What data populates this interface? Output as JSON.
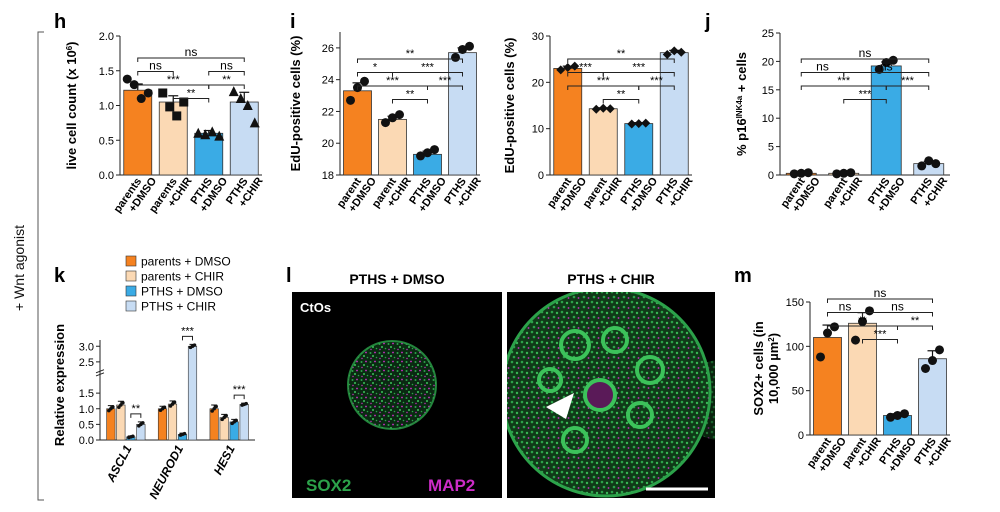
{
  "side_label": "+ Wnt agonist",
  "colors": {
    "orange": "#f58220",
    "peach": "#fbd9b4",
    "blue": "#3aabe5",
    "lightblue": "#c7dcf3",
    "green": "#2ca24a",
    "magenta": "#cc2cc7"
  },
  "panels": {
    "h": "h",
    "i": "i",
    "j": "j",
    "k": "k",
    "l": "l",
    "m": "m"
  },
  "chart_data": [
    {
      "panel": "h",
      "type": "bar",
      "ylabel_parts": [
        "live cell count (x 10",
        "6",
        ")"
      ],
      "ylim": [
        0,
        2.0
      ],
      "yticks": [
        0,
        0.5,
        1.0,
        1.5,
        2.0
      ],
      "ytick_labels": [
        "0.0",
        "0.5",
        "1.0",
        "1.5",
        "2.0"
      ],
      "categories": [
        "parents\n+DMSO",
        "parents\n+CHIR",
        "PTHS\n+DMSO",
        "PTHS\n+CHIR"
      ],
      "values": [
        1.22,
        1.05,
        0.6,
        1.05
      ],
      "errors": [
        0.09,
        0.09,
        0.04,
        0.14
      ],
      "colors": [
        "#f58220",
        "#fbd9b4",
        "#3aabe5",
        "#c7dcf3"
      ],
      "points": [
        [
          1.38,
          1.3,
          1.1,
          1.18
        ],
        [
          1.18,
          0.98,
          0.85,
          1.05
        ],
        [
          0.6,
          0.58,
          0.62,
          0.56
        ],
        [
          1.2,
          1.1,
          1.0,
          0.75
        ]
      ],
      "point_shapes": [
        "circle",
        "square",
        "triangle",
        "triangle"
      ],
      "brackets": [
        {
          "from": 0,
          "to": 3,
          "label": "ns",
          "level": 3
        },
        {
          "from": 0,
          "to": 1,
          "label": "ns",
          "level": 2
        },
        {
          "from": 2,
          "to": 3,
          "label": "ns",
          "level": 2
        },
        {
          "from": 0,
          "to": 2,
          "label": "***",
          "level": 1
        },
        {
          "from": 2,
          "to": 3,
          "label": "**",
          "level": 1
        },
        {
          "from": 1,
          "to": 2,
          "label": "**",
          "level": 0
        }
      ]
    },
    {
      "panel": "i1",
      "type": "bar",
      "ylabel_parts": [
        "EdU-positive cells (%)"
      ],
      "ylim": [
        18,
        27
      ],
      "yticks": [
        18,
        20,
        22,
        24,
        26
      ],
      "ytick_labels": [
        "18",
        "20",
        "22",
        "24",
        "26"
      ],
      "categories": [
        "parent\n+DMSO",
        "parent\n+CHIR",
        "PTHS\n+DMSO",
        "PTHS\n+CHIR"
      ],
      "values": [
        23.3,
        21.5,
        19.3,
        25.7
      ],
      "errors": [
        0.5,
        0.2,
        0.2,
        0.3
      ],
      "colors": [
        "#f58220",
        "#fbd9b4",
        "#3aabe5",
        "#c7dcf3"
      ],
      "points": [
        [
          22.7,
          23.5,
          23.9
        ],
        [
          21.3,
          21.6,
          21.8
        ],
        [
          19.2,
          19.4,
          19.6
        ],
        [
          25.4,
          25.9,
          26.1
        ]
      ],
      "point_shapes": [
        "circle",
        "circle",
        "circle",
        "circle"
      ],
      "brackets": [
        {
          "from": 0,
          "to": 3,
          "label": "**",
          "level": 3
        },
        {
          "from": 0,
          "to": 1,
          "label": "*",
          "level": 2
        },
        {
          "from": 1,
          "to": 3,
          "label": "***",
          "level": 2
        },
        {
          "from": 0,
          "to": 2,
          "label": "***",
          "level": 1
        },
        {
          "from": 2,
          "to": 3,
          "label": "***",
          "level": 1
        },
        {
          "from": 1,
          "to": 2,
          "label": "**",
          "level": 0
        }
      ]
    },
    {
      "panel": "i2",
      "type": "bar",
      "ylabel_parts": [
        "EdU-positive cells (%)"
      ],
      "ylim": [
        0,
        30
      ],
      "yticks": [
        0,
        10,
        20,
        30
      ],
      "ytick_labels": [
        "0",
        "10",
        "20",
        "30"
      ],
      "categories": [
        "parent\n+DMSO",
        "parent\n+CHIR",
        "PTHS\n+DMSO",
        "PTHS\n+CHIR"
      ],
      "values": [
        23.0,
        14.3,
        11.1,
        26.4
      ],
      "errors": [
        0.5,
        0.2,
        0.2,
        0.5
      ],
      "colors": [
        "#f58220",
        "#fbd9b4",
        "#3aabe5",
        "#c7dcf3"
      ],
      "points": [
        [
          22.7,
          23.2,
          23.5
        ],
        [
          14.2,
          14.4,
          14.3
        ],
        [
          11.0,
          11.1,
          11.2
        ],
        [
          26.0,
          26.8,
          26.5
        ]
      ],
      "point_shapes": [
        "diamond",
        "diamond",
        "diamond",
        "diamond"
      ],
      "brackets": [
        {
          "from": 0,
          "to": 3,
          "label": "**",
          "level": 3
        },
        {
          "from": 0,
          "to": 1,
          "label": "***",
          "level": 2
        },
        {
          "from": 1,
          "to": 3,
          "label": "***",
          "level": 2
        },
        {
          "from": 0,
          "to": 2,
          "label": "***",
          "level": 1
        },
        {
          "from": 2,
          "to": 3,
          "label": "***",
          "level": 1
        },
        {
          "from": 1,
          "to": 2,
          "label": "**",
          "level": 0
        }
      ]
    },
    {
      "panel": "j",
      "type": "bar",
      "ylabel_parts": [
        "% p16",
        "INK4a",
        " + cells"
      ],
      "ylim": [
        0,
        25
      ],
      "yticks": [
        0,
        5,
        10,
        15,
        20,
        25
      ],
      "ytick_labels": [
        "0",
        "5",
        "10",
        "15",
        "20",
        "25"
      ],
      "categories": [
        "parent\n+DMSO",
        "parent\n+CHIR",
        "PTHS\n+DMSO",
        "PTHS\n+CHIR"
      ],
      "values": [
        0.3,
        0.3,
        19.2,
        2.0
      ],
      "errors": [
        0.1,
        0.1,
        0.7,
        0.4
      ],
      "colors": [
        "#f58220",
        "#fbd9b4",
        "#3aabe5",
        "#c7dcf3"
      ],
      "points": [
        [
          0.2,
          0.3,
          0.4
        ],
        [
          0.2,
          0.3,
          0.4
        ],
        [
          18.6,
          19.8,
          20.2
        ],
        [
          1.6,
          2.5,
          2.0
        ]
      ],
      "point_shapes": [
        "circle",
        "circle",
        "circle",
        "circle"
      ],
      "brackets": [
        {
          "from": 0,
          "to": 3,
          "label": "ns",
          "level": 3
        },
        {
          "from": 0,
          "to": 1,
          "label": "ns",
          "level": 2
        },
        {
          "from": 1,
          "to": 3,
          "label": "ns",
          "level": 2
        },
        {
          "from": 0,
          "to": 2,
          "label": "***",
          "level": 1
        },
        {
          "from": 2,
          "to": 3,
          "label": "***",
          "level": 1
        },
        {
          "from": 1,
          "to": 2,
          "label": "***",
          "level": 0
        }
      ]
    },
    {
      "panel": "k",
      "type": "bar",
      "ylabel_parts": [
        "Relative expression"
      ],
      "ylim": [
        0,
        3.2
      ],
      "yticks": [
        0,
        0.5,
        1.0,
        1.5,
        2.0,
        2.5,
        3.0
      ],
      "ytick_labels": [
        "0.0",
        "0.5",
        "1.0",
        "1.5",
        "2.0",
        "2.5",
        "3.0"
      ],
      "axis_break": true,
      "categories": [
        "ASCL1",
        "NEUROD1",
        "HES1"
      ],
      "series": [
        {
          "name": "parents + DMSO",
          "color": "#f58220",
          "values": [
            1.0,
            1.0,
            1.0
          ]
        },
        {
          "name": "parents + CHIR",
          "color": "#fbd9b4",
          "values": [
            1.12,
            1.15,
            0.72
          ]
        },
        {
          "name": "PTHS + DMSO",
          "color": "#3aabe5",
          "values": [
            0.1,
            0.18,
            0.58
          ]
        },
        {
          "name": "PTHS + CHIR",
          "color": "#c7dcf3",
          "values": [
            0.5,
            3.0,
            1.14
          ]
        }
      ],
      "errors": [
        [
          0.1,
          0.08,
          0.12
        ],
        [
          0.12,
          0.1,
          0.1
        ],
        [
          0.03,
          0.04,
          0.08
        ],
        [
          0.08,
          0.06,
          0.04
        ]
      ],
      "annotations": [
        {
          "group": 0,
          "label": "**"
        },
        {
          "group": 1,
          "label": "***"
        },
        {
          "group": 2,
          "label": "***"
        }
      ]
    },
    {
      "panel": "m",
      "type": "bar",
      "ylabel_parts": [
        "SOX2+ cells (in",
        "10,000 µm",
        "2",
        ")"
      ],
      "ylim": [
        0,
        150
      ],
      "yticks": [
        0,
        50,
        100,
        150
      ],
      "ytick_labels": [
        "0",
        "50",
        "100",
        "150"
      ],
      "categories": [
        "parent\n+DMSO",
        "parent\n+CHIR",
        "PTHS\n+DMSO",
        "PTHS\n+CHIR"
      ],
      "values": [
        110,
        126,
        22,
        86
      ],
      "errors": [
        14,
        12,
        2,
        9
      ],
      "colors": [
        "#f58220",
        "#fbd9b4",
        "#3aabe5",
        "#c7dcf3"
      ],
      "points": [
        [
          88,
          115,
          122
        ],
        [
          107,
          128,
          140
        ],
        [
          20,
          22,
          24
        ],
        [
          75,
          84,
          96
        ]
      ],
      "point_shapes": [
        "circle",
        "circle",
        "circle",
        "circle"
      ],
      "brackets": [
        {
          "from": 0,
          "to": 3,
          "label": "ns",
          "level": 3
        },
        {
          "from": 0,
          "to": 1,
          "label": "ns",
          "level": 2
        },
        {
          "from": 1,
          "to": 3,
          "label": "ns",
          "level": 2
        },
        {
          "from": 0,
          "to": 2,
          "label": "**",
          "level": 1
        },
        {
          "from": 2,
          "to": 3,
          "label": "**",
          "level": 1
        },
        {
          "from": 1,
          "to": 2,
          "label": "***",
          "level": 0
        }
      ]
    }
  ],
  "microscopy": {
    "title_left": "PTHS + DMSO",
    "title_right": "PTHS + CHIR",
    "sample_label": "CtOs",
    "channel_1": "SOX2",
    "channel_2": "MAP2"
  }
}
